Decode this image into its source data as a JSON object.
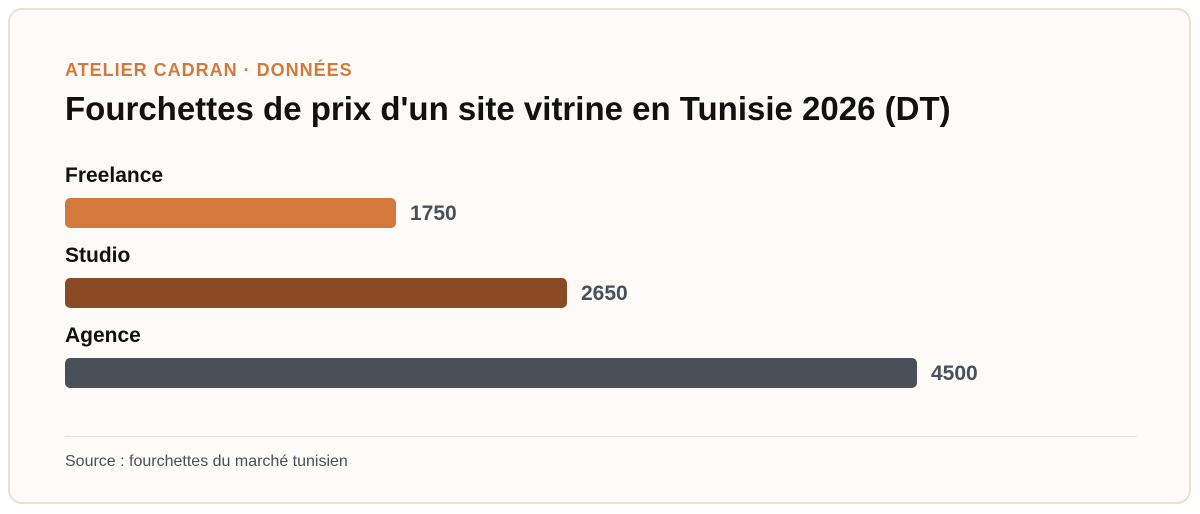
{
  "header": {
    "eyebrow": "ATELIER CADRAN · DONNÉES",
    "title": "Fourchettes de prix d'un site vitrine en Tunisie 2026 (DT)"
  },
  "footer": {
    "source": "Source : fourchettes du marché tunisien"
  },
  "chart_data": {
    "type": "bar",
    "orientation": "horizontal",
    "title": "Fourchettes de prix d'un site vitrine en Tunisie 2026 (DT)",
    "categories": [
      "Freelance",
      "Studio",
      "Agence"
    ],
    "values": [
      1750,
      2650,
      4500
    ],
    "colors": [
      "#d4793c",
      "#8b4a26",
      "#4a5058"
    ],
    "xlim": [
      0,
      4500
    ],
    "grid": false,
    "legend": "none"
  }
}
